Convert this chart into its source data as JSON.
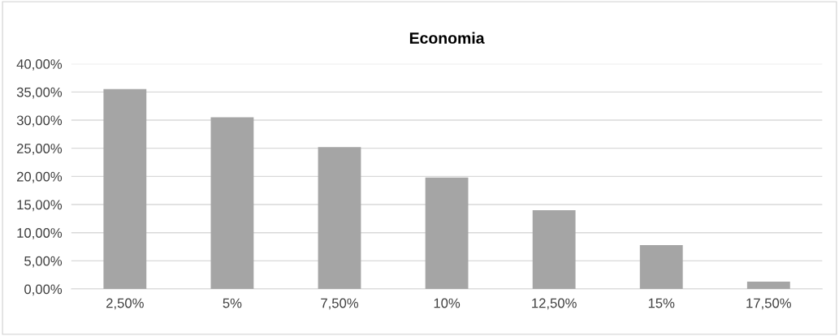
{
  "chart_data": {
    "type": "bar",
    "title": "Economia",
    "categories": [
      "2,50%",
      "5%",
      "7,50%",
      "10%",
      "12,50%",
      "15%",
      "17,50%"
    ],
    "values": [
      35.5,
      30.5,
      25.2,
      19.8,
      14.0,
      7.8,
      1.3
    ],
    "color": "#a5a5a5",
    "ylim": [
      0,
      40
    ],
    "yticks": [
      {
        "value": 0,
        "label": "0,00%"
      },
      {
        "value": 5,
        "label": "5,00%"
      },
      {
        "value": 10,
        "label": "10,00%"
      },
      {
        "value": 15,
        "label": "15,00%"
      },
      {
        "value": 20,
        "label": "20,00%"
      },
      {
        "value": 25,
        "label": "25,00%"
      },
      {
        "value": 30,
        "label": "30,00%"
      },
      {
        "value": 35,
        "label": "35,00%"
      },
      {
        "value": 40,
        "label": "40,00%"
      }
    ],
    "grid": "y"
  }
}
